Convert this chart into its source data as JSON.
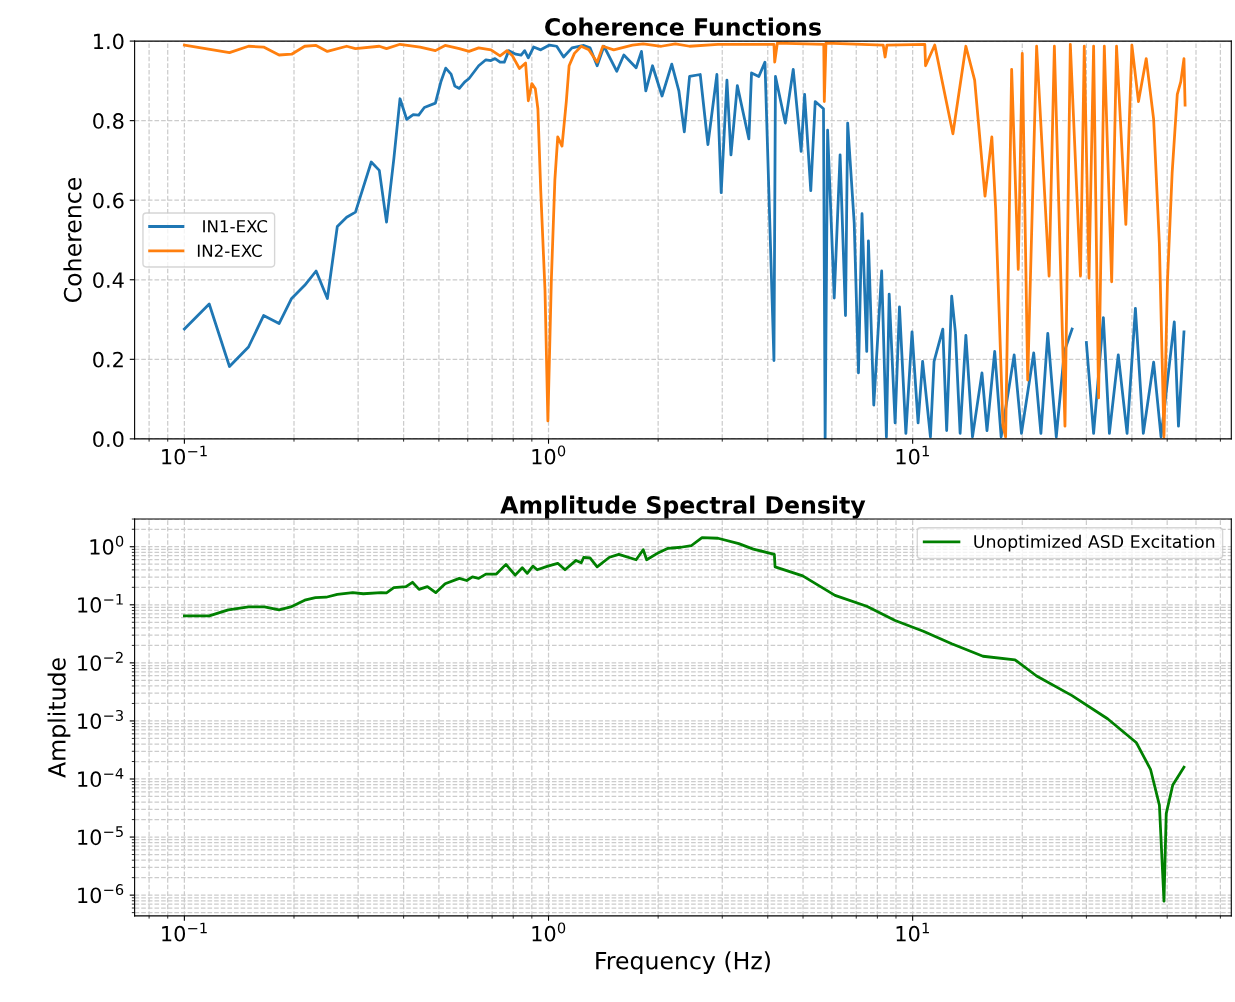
{
  "chart_data": [
    {
      "type": "line",
      "title": "Coherence Functions",
      "ylabel": "Coherence",
      "log": "x",
      "grid": true,
      "legend": "left",
      "xlim": [
        0.073,
        75
      ],
      "xticks": [
        {
          "value": 0.1,
          "label": "10$^{−1}$"
        },
        {
          "value": 1,
          "label": "10$^{0}$"
        },
        {
          "value": 10,
          "label": "10$^{1}$"
        }
      ],
      "ylim": [
        0,
        1
      ],
      "yticks": [
        {
          "value": 0,
          "label": "0.0"
        },
        0.2,
        0.4,
        0.6,
        0.8,
        {
          "value": 1,
          "label": "1.0"
        }
      ],
      "series": [
        {
          "name": " IN1-EXC",
          "color": "#1f77b4",
          "x": [
            0.1,
            0.117,
            0.133,
            0.15,
            0.165,
            0.182,
            0.197,
            0.214,
            0.23,
            0.247,
            0.263,
            0.279,
            0.295,
            0.326,
            0.343,
            0.359,
            0.376,
            0.391,
            0.408,
            0.425,
            0.44,
            0.456,
            0.489,
            0.506,
            0.522,
            0.54,
            0.553,
            0.569,
            0.588,
            0.605,
            0.643,
            0.673,
            0.695,
            0.713,
            0.736,
            0.756,
            0.778,
            0.813,
            0.841,
            0.86,
            0.88,
            0.91,
            0.952,
            1.006,
            1.053,
            1.1,
            1.16,
            1.25,
            1.3,
            1.36,
            1.42,
            1.54,
            1.61,
            1.74,
            1.8,
            1.85,
            1.93,
            2.05,
            2.18,
            2.28,
            2.36,
            2.44,
            2.61,
            2.74,
            2.9,
            2.98,
            3.09,
            3.17,
            3.3,
            3.55,
            3.61,
            3.78,
            3.93,
            4.16,
            4.2,
            4.47,
            4.7,
            4.94,
            5.05,
            5.25,
            5.4,
            5.69,
            5.75,
            5.84,
            6.09,
            6.32,
            6.54,
            6.63,
            6.91,
            7.1,
            7.26,
            7.48,
            7.56,
            7.82,
            8.22,
            8.47,
            8.62,
            8.95,
            9.2,
            9.58,
            9.96,
            10.35,
            10.65,
            11.19,
            11.45,
            12.1,
            12.4,
            12.8,
            13.1,
            13.5,
            14.0,
            14.6,
            15.5,
            16.0,
            16.8,
            17.5,
            19.0,
            19.9,
            21.5,
            22.5,
            23.5,
            24.8,
            26.1,
            27.4,
            28.4,
            30.0,
            31.4,
            33.4,
            34.7,
            36.7,
            38.8,
            40.9,
            43.0,
            45.9,
            48.1,
            52.3,
            53.7,
            55.6
          ],
          "values": [
            0.276,
            0.339,
            0.182,
            0.231,
            0.31,
            0.29,
            0.353,
            0.386,
            0.422,
            0.353,
            0.534,
            0.557,
            0.57,
            0.696,
            0.675,
            0.545,
            0.704,
            0.855,
            0.803,
            0.815,
            0.814,
            0.833,
            0.844,
            0.897,
            0.932,
            0.917,
            0.887,
            0.881,
            0.897,
            0.906,
            0.938,
            0.953,
            0.951,
            0.956,
            0.947,
            0.947,
            0.976,
            0.967,
            0.965,
            0.976,
            0.958,
            0.985,
            0.978,
            0.99,
            0.987,
            0.96,
            0.983,
            0.989,
            0.983,
            0.938,
            0.987,
            0.924,
            0.965,
            0.933,
            0.974,
            0.875,
            0.938,
            0.862,
            0.942,
            0.875,
            0.772,
            0.911,
            0.916,
            0.74,
            0.916,
            0.619,
            0.902,
            0.714,
            0.888,
            0.754,
            0.92,
            0.911,
            0.947,
            0.197,
            0.911,
            0.794,
            0.929,
            0.723,
            0.866,
            0.624,
            0.848,
            0.83,
            0.0,
            0.776,
            0.354,
            0.714,
            0.31,
            0.794,
            0.543,
            0.166,
            0.566,
            0.22,
            0.498,
            0.085,
            0.422,
            0.005,
            0.364,
            0.04,
            0.332,
            0.014,
            0.269,
            0.04,
            0.195,
            0.005,
            0.195,
            0.276,
            0.021,
            0.359,
            0.269,
            0.014,
            0.26,
            0.005,
            0.166,
            0.021,
            0.22,
            0.005,
            0.211,
            0.014,
            0.216,
            0.014,
            0.265,
            0.005,
            0.22,
            0.276,
            null,
            0.242,
            0.014,
            0.305,
            0.014,
            0.211,
            0.014,
            0.328,
            0.014,
            0.193,
            0.005,
            0.294,
            0.032,
            0.269
          ]
        },
        {
          "name": "IN2-EXC",
          "color": "#ff7f0e",
          "x": [
            0.1,
            0.133,
            0.15,
            0.165,
            0.182,
            0.197,
            0.214,
            0.23,
            0.247,
            0.279,
            0.295,
            0.343,
            0.359,
            0.391,
            0.444,
            0.489,
            0.52,
            0.569,
            0.605,
            0.643,
            0.695,
            0.736,
            0.769,
            0.796,
            0.832,
            0.865,
            0.88,
            0.9,
            0.92,
            0.935,
            0.952,
            0.978,
            0.996,
            1.018,
            1.041,
            1.06,
            1.089,
            1.119,
            1.139,
            1.178,
            1.23,
            1.29,
            1.36,
            1.41,
            1.51,
            1.7,
            1.82,
            2.04,
            2.23,
            2.44,
            2.92,
            4.16,
            4.18,
            4.25,
            5.7,
            5.72,
            5.78,
            8.3,
            8.4,
            8.5,
            10.8,
            10.85,
            11.5,
            12.9,
            14.0,
            14.8,
            15.8,
            16.5,
            16.9,
            17.7,
            18.0,
            18.7,
            19.5,
            20.0,
            20.7,
            21.9,
            23.7,
            24.5,
            26.2,
            27.1,
            28.9,
            29.6,
            30.5,
            31.4,
            32.4,
            33.6,
            35.2,
            36.3,
            38.5,
            40.0,
            41.7,
            43.8,
            45.9,
            47.6,
            49.0,
            50.1,
            51.6,
            53.3,
            54.5,
            55.6,
            56.0
          ],
          "values": [
            0.99,
            0.971,
            0.987,
            0.985,
            0.965,
            0.967,
            0.987,
            0.989,
            0.974,
            0.987,
            0.981,
            0.987,
            0.981,
            0.992,
            0.985,
            0.976,
            0.989,
            0.981,
            0.974,
            0.983,
            0.978,
            0.963,
            0.976,
            0.963,
            0.931,
            0.945,
            0.85,
            0.893,
            0.88,
            0.83,
            0.624,
            0.373,
            0.045,
            0.399,
            0.651,
            0.759,
            0.736,
            0.848,
            0.938,
            0.969,
            0.987,
            0.978,
            0.947,
            0.987,
            0.978,
            0.99,
            0.993,
            0.987,
            0.993,
            0.987,
            0.992,
            0.992,
            0.947,
            0.995,
            0.992,
            0.848,
            0.995,
            0.99,
            0.96,
            0.99,
            0.992,
            0.938,
            0.99,
            0.767,
            0.987,
            0.902,
            0.61,
            0.759,
            0.579,
            0.032,
            0.005,
            0.929,
            0.426,
            0.969,
            0.148,
            0.987,
            0.409,
            0.987,
            0.032,
            0.992,
            0.409,
            0.987,
            0.404,
            0.987,
            0.103,
            0.987,
            0.395,
            0.987,
            0.539,
            0.99,
            0.848,
            0.956,
            0.803,
            0.489,
            0.005,
            0.399,
            0.669,
            0.866,
            0.898,
            0.956,
            0.839
          ]
        }
      ]
    },
    {
      "type": "line",
      "title": "Amplitude Spectral Density",
      "xlabel": "Frequency (Hz)",
      "ylabel": "Amplitude",
      "log": "xy",
      "grid": true,
      "legend": "top right",
      "xlim": [
        0.073,
        75
      ],
      "xticks": [
        {
          "value": 0.1,
          "label": "10$^{−1}$"
        },
        {
          "value": 1,
          "label": "10$^{0}$"
        },
        {
          "value": 10,
          "label": "10$^{1}$"
        }
      ],
      "ylim": [
        4.4e-07,
        3.0
      ],
      "yticks": [
        {
          "value": 1e-06,
          "label": "10$^{−6}$"
        },
        {
          "value": 1e-05,
          "label": "10$^{−5}$"
        },
        {
          "value": 0.0001,
          "label": "10$^{−4}$"
        },
        {
          "value": 0.001,
          "label": "10$^{−3}$"
        },
        {
          "value": 0.01,
          "label": "10$^{−2}$"
        },
        {
          "value": 0.1,
          "label": "10$^{−1}$"
        },
        {
          "value": 1,
          "label": "10$^{0}$"
        }
      ],
      "series": [
        {
          "name": "Unoptimized ASD Excitation",
          "color": "#008000",
          "x": [
            0.1,
            0.117,
            0.132,
            0.15,
            0.166,
            0.182,
            0.196,
            0.214,
            0.229,
            0.245,
            0.263,
            0.29,
            0.31,
            0.347,
            0.359,
            0.376,
            0.406,
            0.423,
            0.441,
            0.465,
            0.49,
            0.52,
            0.569,
            0.596,
            0.618,
            0.643,
            0.673,
            0.719,
            0.764,
            0.81,
            0.847,
            0.874,
            0.906,
            0.931,
            0.996,
            1.06,
            1.11,
            1.19,
            1.23,
            1.25,
            1.3,
            1.36,
            1.47,
            1.56,
            1.74,
            1.82,
            1.86,
            1.99,
            2.13,
            2.31,
            2.47,
            2.64,
            2.92,
            3.33,
            3.65,
            4.17,
            4.19,
            4.99,
            6.12,
            7.48,
            8.95,
            10.7,
            12.8,
            15.6,
            19.1,
            21.9,
            27.4,
            34.3,
            41.1,
            45.0,
            47.6,
            49.0,
            49.7,
            51.8,
            55.6
          ],
          "values": [
            0.0644,
            0.0644,
            0.082,
            0.092,
            0.092,
            0.082,
            0.092,
            0.12,
            0.133,
            0.135,
            0.151,
            0.162,
            0.155,
            0.162,
            0.161,
            0.197,
            0.206,
            0.244,
            0.184,
            0.206,
            0.162,
            0.231,
            0.285,
            0.262,
            0.303,
            0.285,
            0.338,
            0.338,
            0.497,
            0.324,
            0.436,
            0.348,
            0.463,
            0.401,
            0.463,
            0.518,
            0.401,
            0.581,
            0.53,
            0.659,
            0.641,
            0.45,
            0.659,
            0.74,
            0.597,
            0.888,
            0.597,
            0.77,
            0.94,
            0.98,
            1.05,
            1.44,
            1.4,
            1.13,
            0.91,
            0.74,
            0.45,
            0.315,
            0.145,
            0.0946,
            0.0536,
            0.0351,
            0.0213,
            0.013,
            0.0113,
            0.00594,
            0.00273,
            0.00109,
            0.000426,
            0.000147,
            3.56e-05,
            7.85e-07,
            2.53e-05,
            7.89e-05,
            0.00016
          ]
        }
      ]
    }
  ]
}
